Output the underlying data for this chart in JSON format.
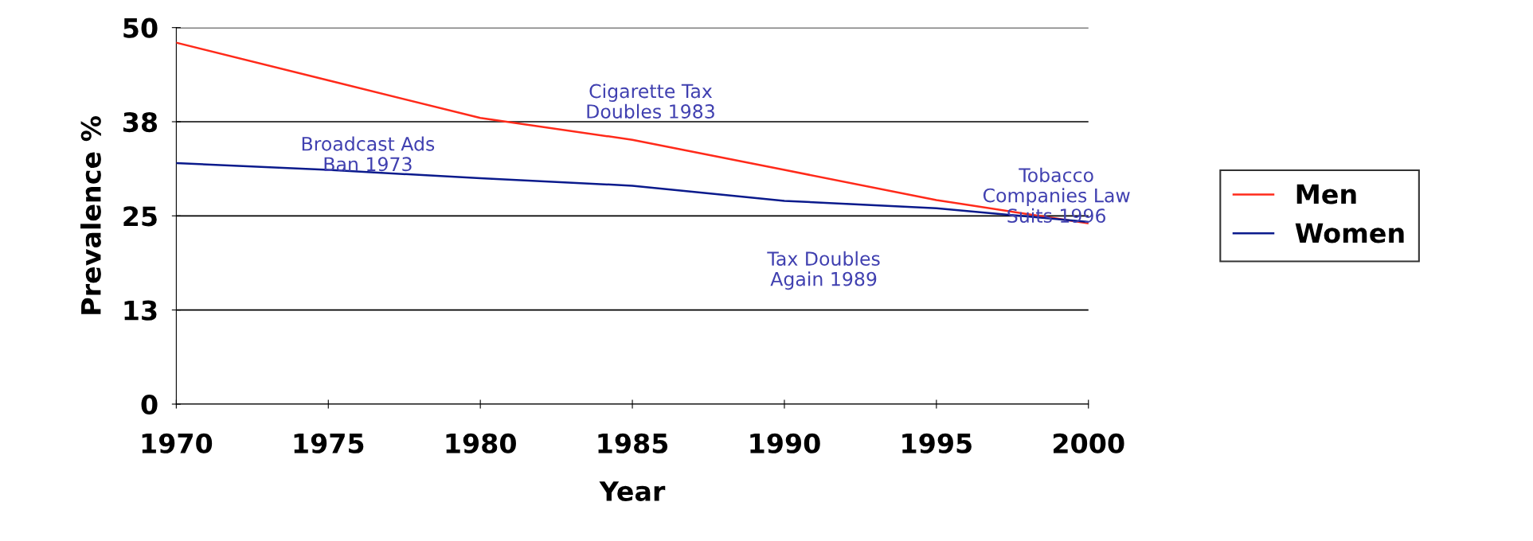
{
  "chart_data": {
    "type": "line",
    "xlabel": "Year",
    "ylabel": "Prevalence %",
    "x": [
      1970,
      1975,
      1980,
      1985,
      1990,
      1995,
      2000
    ],
    "series": [
      {
        "name": "Men",
        "color": "#ff2a1a",
        "values": [
          48,
          43,
          38,
          35.1,
          31.1,
          27.1,
          24
        ]
      },
      {
        "name": "Women",
        "color": "#0a1a8c",
        "values": [
          32,
          31.1,
          30,
          29,
          27,
          26,
          24.2
        ]
      }
    ],
    "xlim": [
      1970,
      2000
    ],
    "xticks": [
      1970,
      1975,
      1980,
      1985,
      1990,
      1995,
      2000
    ],
    "ylim": [
      0,
      50
    ],
    "yticks": [
      0,
      {
        "value": 12.5,
        "label": "13"
      },
      25,
      {
        "value": 37.5,
        "label": "38"
      },
      50
    ],
    "grid": "y",
    "legend": "right",
    "marker": "none",
    "line_style": "solid",
    "annotations": [
      "Broadcast Ads\nBan 1973",
      "Cigarette Tax\nDoubles 1983",
      "Tax Doubles\nAgain 1989",
      "Tobacco\nCompanies Law\nSuits 1996"
    ]
  }
}
